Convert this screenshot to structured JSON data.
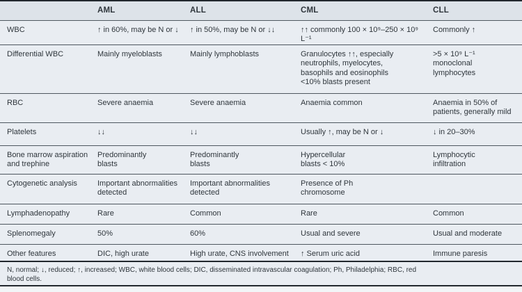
{
  "table": {
    "columns": [
      "AML",
      "ALL",
      "CML",
      "CLL"
    ],
    "rows": [
      {
        "label": "WBC",
        "aml": "↑ in 60%, may be N or ↓",
        "all": "↑ in 50%, may be N or ↓↓",
        "cml": "↑↑ commonly 100 × 10⁹–250 × 10⁹ L⁻¹",
        "cll": "Commonly ↑"
      },
      {
        "label": "Differential WBC",
        "aml": "Mainly myeloblasts",
        "all": "Mainly lymphoblasts",
        "cml": "Granulocytes ↑↑, especially\nneutrophils, myelocytes,\nbasophils and eosinophils\n<10% blasts present",
        "cll": ">5 × 10⁹ L⁻¹\nmonoclonal\nlymphocytes"
      },
      {
        "label": "RBC",
        "aml": "Severe anaemia",
        "all": "Severe anaemia",
        "cml": "Anaemia common",
        "cll": "Anaemia in 50% of\npatients, generally mild"
      },
      {
        "label": "Platelets",
        "aml": "↓↓",
        "all": "↓↓",
        "cml": "Usually ↑, may be N or ↓",
        "cll": "↓ in 20–30%"
      },
      {
        "label": "Bone marrow aspiration\nand trephine",
        "aml": "Predominantly\nblasts",
        "all": "Predominantly\nblasts",
        "cml": "Hypercellular\nblasts < 10%",
        "cll": "Lymphocytic\ninfiltration"
      },
      {
        "label": "Cytogenetic analysis",
        "aml": "Important abnormalities\ndetected",
        "all": "Important abnormalities\ndetected",
        "cml": "Presence of Ph\nchromosome",
        "cll": ""
      },
      {
        "label": "Lymphadenopathy",
        "aml": "Rare",
        "all": "Common",
        "cml": "Rare",
        "cll": "Common"
      },
      {
        "label": "Splenomegaly",
        "aml": "50%",
        "all": "60%",
        "cml": "Usual and severe",
        "cll": "Usual and moderate"
      },
      {
        "label": "Other features",
        "aml": "DIC, high urate",
        "all": "High urate, CNS involvement",
        "cml": "↑ Serum uric acid",
        "cll": "Immune paresis"
      }
    ],
    "footnote": "N, normal; ↓, reduced; ↑, increased; WBC, white blood cells; DIC, disseminated intravascular coagulation; Ph, Philadelphia; RBC, red\nblood cells."
  },
  "colors": {
    "header_bg": "#dde3e9",
    "row_bg": "#e9edf2",
    "rule_dark": "#22282e",
    "rule_mid": "#4e575f",
    "text": "#2f363c",
    "page_bg": "#f2f5f7"
  }
}
